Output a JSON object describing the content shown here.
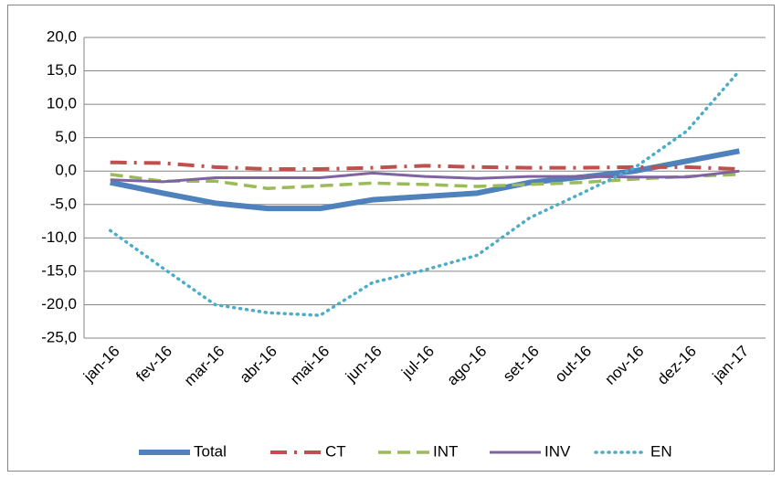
{
  "chart_data": {
    "type": "line",
    "categories": [
      "jan-16",
      "fev-16",
      "mar-16",
      "abr-16",
      "mai-16",
      "jun-16",
      "jul-16",
      "ago-16",
      "set-16",
      "out-16",
      "nov-16",
      "dez-16",
      "jan-17"
    ],
    "series": [
      {
        "name": "Total",
        "color": "#4f81bd",
        "values": [
          -1.7,
          -3.3,
          -4.8,
          -5.6,
          -5.6,
          -4.3,
          -3.8,
          -3.3,
          -1.7,
          -0.9,
          0.0,
          1.5,
          3.0
        ]
      },
      {
        "name": "CT",
        "color": "#c0504d",
        "values": [
          1.3,
          1.2,
          0.6,
          0.3,
          0.3,
          0.5,
          0.8,
          0.6,
          0.5,
          0.5,
          0.6,
          0.6,
          0.3
        ]
      },
      {
        "name": "INT",
        "color": "#9bbb59",
        "values": [
          -0.5,
          -1.5,
          -1.5,
          -2.6,
          -2.2,
          -1.8,
          -2.0,
          -2.3,
          -2.0,
          -1.7,
          -1.2,
          -0.8,
          -0.5
        ]
      },
      {
        "name": "INV",
        "color": "#8064a2",
        "values": [
          -1.3,
          -1.6,
          -1.0,
          -1.0,
          -1.0,
          -0.3,
          -0.8,
          -1.1,
          -0.8,
          -0.8,
          -0.9,
          -0.9,
          0.0
        ]
      },
      {
        "name": "EN",
        "color": "#4bacc6",
        "values": [
          -8.9,
          -14.5,
          -20.0,
          -21.2,
          -21.6,
          -16.7,
          -14.8,
          -12.6,
          -7.0,
          -3.3,
          0.5,
          6.0,
          15.0
        ]
      }
    ],
    "ylim": [
      -25,
      20
    ],
    "yticks": [
      {
        "value": -25,
        "label": "-25,0"
      },
      {
        "value": -20,
        "label": "-20,0"
      },
      {
        "value": -15,
        "label": "-15,0"
      },
      {
        "value": -10,
        "label": "-10,0"
      },
      {
        "value": -5,
        "label": "-5,0"
      },
      {
        "value": 0,
        "label": "0,0"
      },
      {
        "value": 5,
        "label": "5,0"
      },
      {
        "value": 10,
        "label": "10,0"
      },
      {
        "value": 15,
        "label": "15,0"
      },
      {
        "value": 20,
        "label": "20,0"
      }
    ],
    "grid": true,
    "legend": "bottom"
  }
}
